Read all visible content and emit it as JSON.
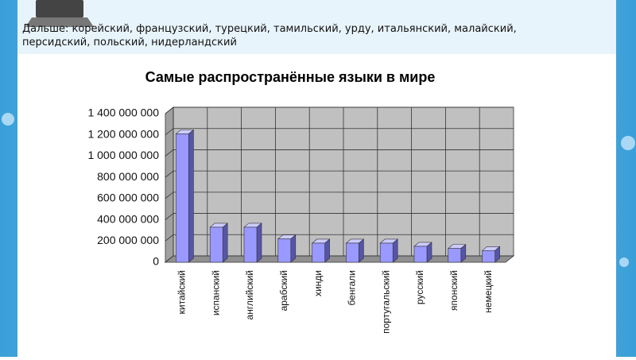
{
  "header": {
    "lines": [
      "Дальше: корейский, французский, турецкий, тамильский, урду, итальянский, малайский,",
      "персидский, польский, нидерландский"
    ]
  },
  "chart_data": {
    "type": "bar",
    "title": "Самые распространённые языки в мире",
    "categories": [
      "китайский",
      "испанский",
      "английский",
      "арабский",
      "хинди",
      "бенгали",
      "португальский",
      "русский",
      "японский",
      "немецкий"
    ],
    "values": [
      1210000000,
      330000000,
      330000000,
      220000000,
      180000000,
      180000000,
      180000000,
      150000000,
      130000000,
      110000000
    ],
    "color": "#9999ff",
    "ylim": [
      0,
      1400000000
    ],
    "yticks": [
      0,
      {
        "value": 200000000,
        "label": "200 000 000"
      },
      {
        "value": 400000000,
        "label": "400 000 000"
      },
      {
        "value": 600000000,
        "label": "600 000 000"
      },
      {
        "value": 800000000,
        "label": "800 000 000"
      },
      {
        "value": 1000000000,
        "label": "1 000 000 000"
      },
      {
        "value": 1200000000,
        "label": "1 200 000 000"
      },
      {
        "value": 1400000000,
        "label": "1 400 000 000"
      }
    ],
    "grid": true
  }
}
